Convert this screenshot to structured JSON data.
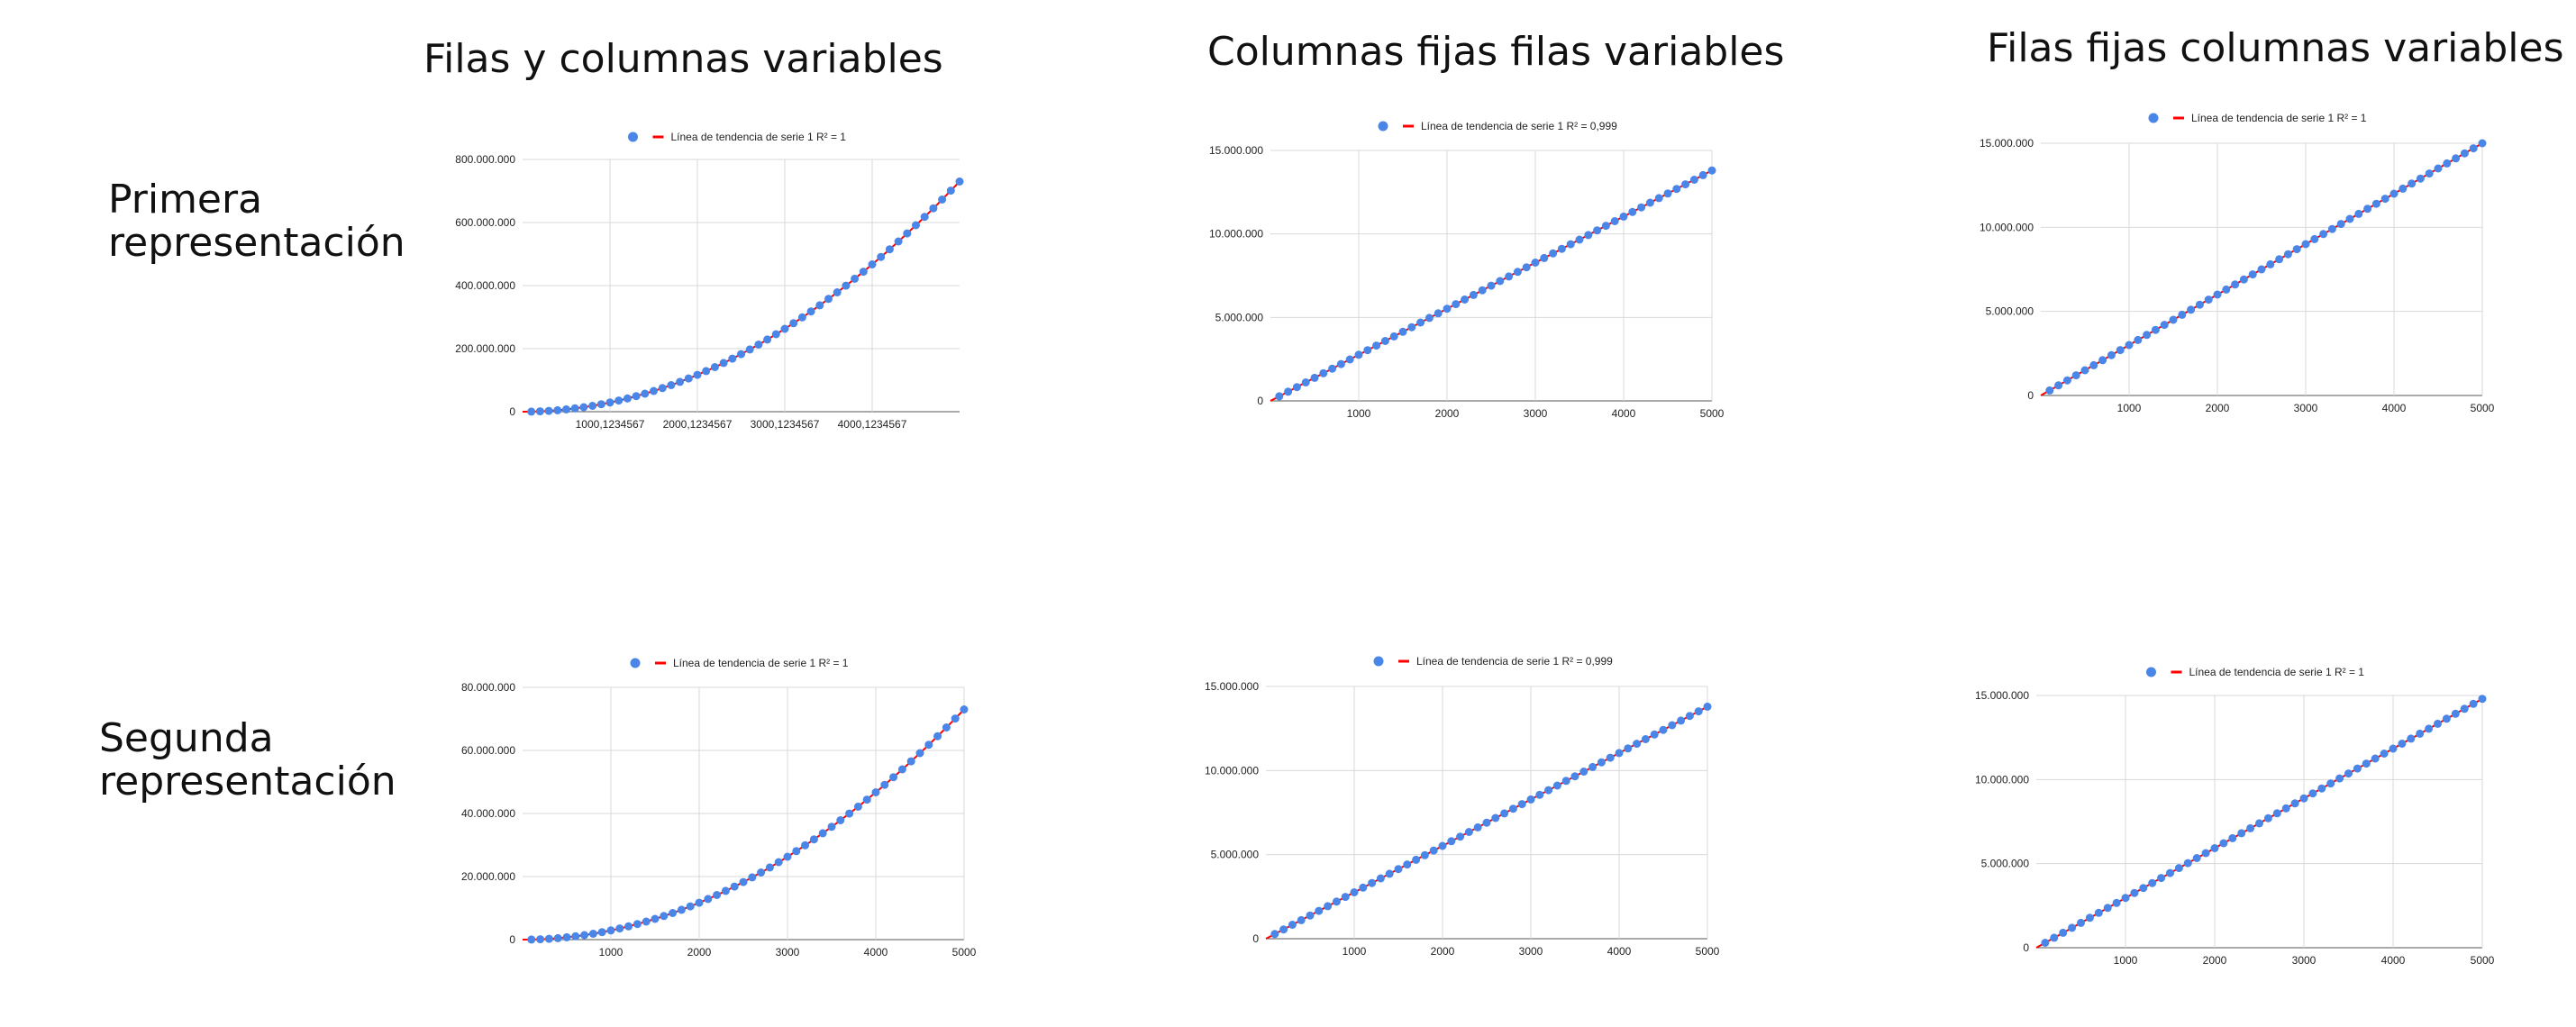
{
  "columns": [
    "Filas y columnas variables",
    "Columnas fijas filas variables",
    "Filas fijas columnas variables"
  ],
  "rows": [
    "Primera\nrepresentación",
    "Segunda\nrepresentación"
  ],
  "colors": {
    "points": "#4a86e8",
    "trend": "#ff0000",
    "grid": "#d9d9d9",
    "axis": "#555555"
  },
  "chart_data": [
    {
      "type": "scatter",
      "legend": [
        "",
        "Línea de tendencia de serie 1 R² = 1"
      ],
      "legend_position": "top",
      "grid": true,
      "xlim": [
        0,
        5000
      ],
      "ylim": [
        0,
        800000000
      ],
      "xticks": [
        1000,
        2000,
        3000,
        4000
      ],
      "xtick_labels": [
        "1000,1234567",
        "2000,1234567",
        "3000,1234567",
        "4000,1234567"
      ],
      "yticks": [
        0,
        200000000,
        400000000,
        600000000,
        800000000
      ],
      "ytick_labels": [
        "0",
        "200.000.000",
        "400.000.000",
        "600.000.000",
        "800.000.000"
      ],
      "curve": "quadratic",
      "y_at_xmax": 730000000,
      "y_at_xmin": 0,
      "points": 50
    },
    {
      "type": "scatter",
      "legend": [
        "",
        "Línea de tendencia de serie 1 R² = 0,999"
      ],
      "legend_position": "top",
      "grid": true,
      "xlim": [
        0,
        5000
      ],
      "ylim": [
        0,
        15000000
      ],
      "xticks": [
        1000,
        2000,
        3000,
        4000,
        5000
      ],
      "xtick_labels": [
        "1000",
        "2000",
        "3000",
        "4000",
        "5000"
      ],
      "yticks": [
        0,
        5000000,
        10000000,
        15000000
      ],
      "ytick_labels": [
        "0",
        "5.000.000",
        "10.000.000",
        "15.000.000"
      ],
      "curve": "linear",
      "y_at_xmax": 13800000,
      "y_at_xmin": 0,
      "points": 50
    },
    {
      "type": "scatter",
      "legend": [
        "",
        "Línea de tendencia de serie 1 R² = 1"
      ],
      "legend_position": "top",
      "grid": true,
      "xlim": [
        0,
        5000
      ],
      "ylim": [
        0,
        15000000
      ],
      "xticks": [
        1000,
        2000,
        3000,
        4000,
        5000
      ],
      "xtick_labels": [
        "1000",
        "2000",
        "3000",
        "4000",
        "5000"
      ],
      "yticks": [
        0,
        5000000,
        10000000,
        15000000
      ],
      "ytick_labels": [
        "0",
        "5.000.000",
        "10.000.000",
        "15.000.000"
      ],
      "curve": "linear",
      "y_at_xmax": 15000000,
      "y_at_xmin": 0,
      "points": 50
    },
    {
      "type": "scatter",
      "legend": [
        "",
        "Línea de tendencia de serie 1 R² = 1"
      ],
      "legend_position": "top",
      "grid": true,
      "xlim": [
        0,
        5000
      ],
      "ylim": [
        0,
        80000000
      ],
      "xticks": [
        1000,
        2000,
        3000,
        4000,
        5000
      ],
      "xtick_labels": [
        "1000",
        "2000",
        "3000",
        "4000",
        "5000"
      ],
      "yticks": [
        0,
        20000000,
        40000000,
        60000000,
        80000000
      ],
      "ytick_labels": [
        "0",
        "20.000.000",
        "40.000.000",
        "60.000.000",
        "80.000.000"
      ],
      "curve": "quadratic",
      "y_at_xmax": 73000000,
      "y_at_xmin": 0,
      "points": 50
    },
    {
      "type": "scatter",
      "legend": [
        "",
        "Línea de tendencia de serie 1 R² = 0,999"
      ],
      "legend_position": "top",
      "grid": true,
      "xlim": [
        0,
        5000
      ],
      "ylim": [
        0,
        15000000
      ],
      "xticks": [
        1000,
        2000,
        3000,
        4000,
        5000
      ],
      "xtick_labels": [
        "1000",
        "2000",
        "3000",
        "4000",
        "5000"
      ],
      "yticks": [
        0,
        5000000,
        10000000,
        15000000
      ],
      "ytick_labels": [
        "0",
        "5.000.000",
        "10.000.000",
        "15.000.000"
      ],
      "curve": "linear",
      "y_at_xmax": 13800000,
      "y_at_xmin": 0,
      "points": 50
    },
    {
      "type": "scatter",
      "legend": [
        "",
        "Línea de tendencia de serie 1 R² = 1"
      ],
      "legend_position": "top",
      "grid": true,
      "xlim": [
        0,
        5000
      ],
      "ylim": [
        0,
        15000000
      ],
      "xticks": [
        1000,
        2000,
        3000,
        4000,
        5000
      ],
      "xtick_labels": [
        "1000",
        "2000",
        "3000",
        "4000",
        "5000"
      ],
      "yticks": [
        0,
        5000000,
        10000000,
        15000000
      ],
      "ytick_labels": [
        "0",
        "5.000.000",
        "10.000.000",
        "15.000.000"
      ],
      "curve": "linear",
      "y_at_xmax": 14800000,
      "y_at_xmin": 0,
      "points": 50
    }
  ]
}
